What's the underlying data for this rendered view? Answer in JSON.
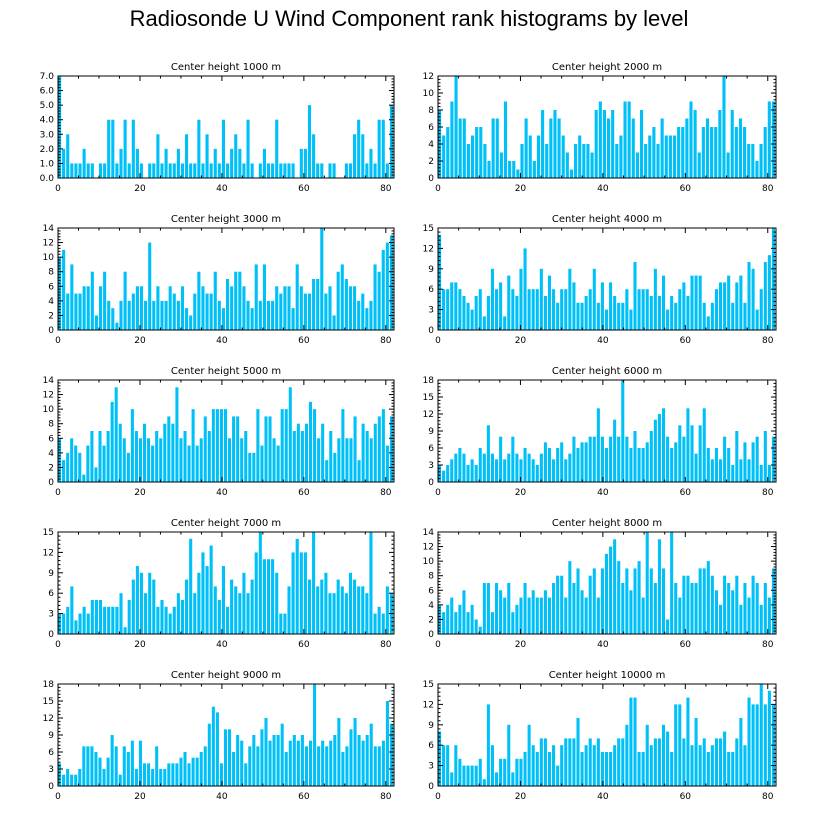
{
  "title": "Radiosonde U Wind Component rank histograms by level",
  "bar_color": "#00c0f8",
  "chart_data": [
    {
      "type": "bar",
      "title": "Center height 1000 m",
      "xlabel": "",
      "ylabel": "",
      "xlim": [
        0,
        82
      ],
      "ylim": [
        0,
        7
      ],
      "xticks": [
        0,
        20,
        40,
        60,
        80
      ],
      "yticks": [
        0,
        1,
        2,
        3,
        4,
        5,
        6,
        7
      ],
      "ytick_labels": [
        "0.0",
        "1.0",
        "2.0",
        "3.0",
        "4.0",
        "5.0",
        "6.0",
        "7.0"
      ],
      "values": [
        7,
        2,
        3,
        1,
        1,
        1,
        2,
        1,
        1,
        0,
        1,
        1,
        4,
        4,
        1,
        2,
        4,
        1,
        4,
        2,
        1,
        0,
        1,
        1,
        3,
        1,
        2,
        1,
        1,
        2,
        1,
        3,
        1,
        1,
        4,
        1,
        3,
        1,
        2,
        1,
        4,
        1,
        2,
        3,
        2,
        1,
        4,
        1,
        0,
        1,
        2,
        1,
        1,
        4,
        1,
        1,
        1,
        1,
        0,
        2,
        2,
        5,
        3,
        1,
        1,
        0,
        1,
        1,
        0,
        0,
        1,
        1,
        3,
        4,
        3,
        1,
        2,
        1,
        4,
        4,
        1,
        5
      ]
    },
    {
      "type": "bar",
      "title": "Center height 2000 m",
      "xlabel": "",
      "ylabel": "",
      "xlim": [
        0,
        82
      ],
      "ylim": [
        0,
        12
      ],
      "xticks": [
        0,
        20,
        40,
        60,
        80
      ],
      "yticks": [
        0,
        2,
        4,
        6,
        8,
        10,
        12
      ],
      "ytick_labels": [
        "0",
        "2",
        "4",
        "6",
        "8",
        "10",
        "12"
      ],
      "values": [
        8,
        5,
        6,
        9,
        12,
        7,
        7,
        4,
        5,
        6,
        6,
        4,
        2,
        7,
        7,
        3,
        9,
        2,
        2,
        1,
        4,
        7,
        5,
        2,
        5,
        8,
        4,
        7,
        8,
        7,
        5,
        3,
        1,
        4,
        5,
        4,
        4,
        3,
        8,
        9,
        8,
        7,
        8,
        4,
        5,
        9,
        9,
        7,
        3,
        8,
        4,
        5,
        6,
        4,
        7,
        5,
        5,
        5,
        6,
        6,
        7,
        9,
        8,
        3,
        6,
        7,
        6,
        6,
        8,
        12,
        3,
        8,
        6,
        7,
        6,
        4,
        4,
        2,
        4,
        6,
        9,
        9
      ]
    },
    {
      "type": "bar",
      "title": "Center height 3000 m",
      "xlabel": "",
      "ylabel": "",
      "xlim": [
        0,
        82
      ],
      "ylim": [
        0,
        14
      ],
      "xticks": [
        0,
        20,
        40,
        60,
        80
      ],
      "yticks": [
        0,
        2,
        4,
        6,
        8,
        10,
        12,
        14
      ],
      "ytick_labels": [
        "0",
        "2",
        "4",
        "6",
        "8",
        "10",
        "12",
        "14"
      ],
      "values": [
        10,
        11,
        5,
        9,
        5,
        5,
        6,
        6,
        8,
        2,
        6,
        8,
        4,
        3,
        1,
        4,
        8,
        4,
        5,
        6,
        6,
        4,
        12,
        4,
        6,
        4,
        4,
        6,
        5,
        4,
        6,
        3,
        2,
        5,
        8,
        6,
        5,
        5,
        8,
        4,
        3,
        7,
        6,
        8,
        8,
        6,
        4,
        3,
        9,
        4,
        9,
        4,
        4,
        6,
        5,
        6,
        6,
        3,
        9,
        6,
        5,
        5,
        7,
        7,
        14,
        5,
        6,
        2,
        8,
        9,
        7,
        6,
        6,
        4,
        5,
        3,
        4,
        9,
        8,
        11,
        12,
        13
      ]
    },
    {
      "type": "bar",
      "title": "Center height 4000 m",
      "xlabel": "",
      "ylabel": "",
      "xlim": [
        0,
        82
      ],
      "ylim": [
        0,
        15
      ],
      "xticks": [
        0,
        20,
        40,
        60,
        80
      ],
      "yticks": [
        0,
        3,
        6,
        9,
        12,
        15
      ],
      "ytick_labels": [
        "0",
        "3",
        "6",
        "9",
        "12",
        "15"
      ],
      "values": [
        14,
        6,
        6,
        7,
        7,
        6,
        5,
        4,
        3,
        5,
        6,
        2,
        5,
        9,
        6,
        7,
        2,
        8,
        6,
        5,
        9,
        12,
        6,
        6,
        6,
        9,
        5,
        8,
        6,
        4,
        6,
        6,
        9,
        7,
        4,
        4,
        5,
        6,
        9,
        4,
        7,
        3,
        7,
        5,
        4,
        4,
        6,
        3,
        10,
        6,
        6,
        6,
        5,
        9,
        5,
        8,
        3,
        5,
        4,
        6,
        7,
        5,
        8,
        8,
        8,
        4,
        2,
        4,
        6,
        7,
        7,
        8,
        4,
        7,
        8,
        4,
        10,
        9,
        3,
        6,
        10,
        11,
        15
      ]
    },
    {
      "type": "bar",
      "title": "Center height 5000 m",
      "xlabel": "",
      "ylabel": "",
      "xlim": [
        0,
        82
      ],
      "ylim": [
        0,
        14
      ],
      "xticks": [
        0,
        20,
        40,
        60,
        80
      ],
      "yticks": [
        0,
        2,
        4,
        6,
        8,
        10,
        12,
        14
      ],
      "ytick_labels": [
        "0",
        "2",
        "4",
        "6",
        "8",
        "10",
        "12",
        "14"
      ],
      "values": [
        6,
        3,
        4,
        6,
        5,
        4,
        1,
        5,
        7,
        2,
        7,
        5,
        7,
        11,
        13,
        8,
        6,
        4,
        10,
        7,
        6,
        8,
        6,
        5,
        7,
        6,
        8,
        9,
        8,
        13,
        6,
        7,
        5,
        10,
        5,
        6,
        9,
        7,
        10,
        10,
        10,
        10,
        6,
        9,
        9,
        6,
        7,
        4,
        4,
        10,
        5,
        9,
        9,
        6,
        5,
        10,
        10,
        13,
        7,
        8,
        7,
        8,
        11,
        10,
        6,
        8,
        3,
        7,
        4,
        6,
        10,
        6,
        6,
        9,
        3,
        8,
        7,
        6,
        8,
        9,
        10,
        5,
        9
      ]
    },
    {
      "type": "bar",
      "title": "Center height 6000 m",
      "xlabel": "",
      "ylabel": "",
      "xlim": [
        0,
        82
      ],
      "ylim": [
        0,
        18
      ],
      "xticks": [
        0,
        20,
        40,
        60,
        80
      ],
      "yticks": [
        0,
        3,
        6,
        9,
        12,
        15,
        18
      ],
      "ytick_labels": [
        "0",
        "3",
        "6",
        "9",
        "12",
        "15",
        "18"
      ],
      "values": [
        3,
        2,
        3,
        4,
        5,
        6,
        5,
        3,
        4,
        3,
        6,
        5,
        10,
        5,
        4,
        8,
        4,
        5,
        8,
        5,
        4,
        6,
        5,
        4,
        3,
        5,
        7,
        6,
        4,
        6,
        7,
        4,
        5,
        8,
        6,
        7,
        7,
        8,
        8,
        13,
        8,
        6,
        8,
        11,
        8,
        18,
        8,
        6,
        9,
        6,
        6,
        7,
        9,
        11,
        12,
        13,
        8,
        6,
        7,
        10,
        8,
        13,
        10,
        5,
        10,
        13,
        6,
        4,
        6,
        4,
        8,
        6,
        3,
        9,
        4,
        7,
        4,
        7,
        8,
        3,
        9,
        3,
        8
      ]
    },
    {
      "type": "bar",
      "title": "Center height 7000 m",
      "xlabel": "",
      "ylabel": "",
      "xlim": [
        0,
        82
      ],
      "ylim": [
        0,
        15
      ],
      "xticks": [
        0,
        20,
        40,
        60,
        80
      ],
      "yticks": [
        0,
        3,
        6,
        9,
        12,
        15
      ],
      "ytick_labels": [
        "0",
        "3",
        "6",
        "9",
        "12",
        "15"
      ],
      "values": [
        3,
        3,
        4,
        7,
        2,
        3,
        4,
        3,
        5,
        5,
        5,
        4,
        4,
        4,
        4,
        6,
        1,
        5,
        8,
        10,
        9,
        6,
        9,
        8,
        4,
        5,
        4,
        3,
        4,
        6,
        5,
        8,
        14,
        6,
        9,
        12,
        10,
        13,
        7,
        5,
        10,
        4,
        8,
        7,
        6,
        9,
        6,
        8,
        12,
        15,
        11,
        11,
        11,
        9,
        3,
        3,
        7,
        12,
        14,
        12,
        12,
        8,
        15,
        7,
        8,
        9,
        6,
        6,
        8,
        7,
        6,
        9,
        8,
        7,
        7,
        6,
        15,
        3,
        4,
        3,
        7,
        6
      ]
    },
    {
      "type": "bar",
      "title": "Center height 8000 m",
      "xlabel": "",
      "ylabel": "",
      "xlim": [
        0,
        82
      ],
      "ylim": [
        0,
        14
      ],
      "xticks": [
        0,
        20,
        40,
        60,
        80
      ],
      "yticks": [
        0,
        2,
        4,
        6,
        8,
        10,
        12,
        14
      ],
      "ytick_labels": [
        "0",
        "2",
        "4",
        "6",
        "8",
        "10",
        "12",
        "14"
      ],
      "values": [
        4,
        3,
        4,
        5,
        3,
        4,
        6,
        3,
        4,
        2,
        1,
        7,
        7,
        3,
        7,
        6,
        5,
        7,
        3,
        4,
        5,
        7,
        5,
        6,
        5,
        5,
        6,
        5,
        7,
        8,
        8,
        5,
        10,
        7,
        9,
        6,
        5,
        8,
        9,
        5,
        9,
        11,
        12,
        13,
        10,
        7,
        9,
        6,
        9,
        10,
        5,
        14,
        9,
        7,
        13,
        9,
        2,
        14,
        7,
        5,
        8,
        8,
        7,
        7,
        9,
        9,
        10,
        8,
        6,
        4,
        8,
        7,
        6,
        8,
        4,
        7,
        5,
        8,
        7,
        4,
        7,
        5,
        9
      ]
    },
    {
      "type": "bar",
      "title": "Center height 9000 m",
      "xlabel": "",
      "ylabel": "",
      "xlim": [
        0,
        82
      ],
      "ylim": [
        0,
        18
      ],
      "xticks": [
        0,
        20,
        40,
        60,
        80
      ],
      "yticks": [
        0,
        3,
        6,
        9,
        12,
        15,
        18
      ],
      "ytick_labels": [
        "0",
        "3",
        "6",
        "9",
        "12",
        "15",
        "18"
      ],
      "values": [
        4,
        2,
        3,
        2,
        2,
        3,
        7,
        7,
        7,
        6,
        5,
        3,
        5,
        9,
        7,
        2,
        7,
        6,
        8,
        3,
        8,
        4,
        4,
        3,
        7,
        3,
        3,
        4,
        4,
        4,
        5,
        6,
        4,
        5,
        5,
        6,
        7,
        11,
        14,
        13,
        4,
        10,
        10,
        6,
        9,
        8,
        4,
        7,
        9,
        7,
        10,
        12,
        8,
        9,
        9,
        11,
        6,
        8,
        9,
        8,
        9,
        7,
        8,
        18,
        7,
        8,
        7,
        8,
        9,
        12,
        6,
        7,
        10,
        12,
        9,
        8,
        9,
        11,
        7,
        7,
        8,
        15,
        11
      ]
    },
    {
      "type": "bar",
      "title": "Center height 10000 m",
      "xlabel": "",
      "ylabel": "",
      "xlim": [
        0,
        82
      ],
      "ylim": [
        0,
        15
      ],
      "xticks": [
        0,
        20,
        40,
        60,
        80
      ],
      "yticks": [
        0,
        3,
        6,
        9,
        12,
        15
      ],
      "ytick_labels": [
        "0",
        "3",
        "6",
        "9",
        "12",
        "15"
      ],
      "values": [
        8,
        6,
        6,
        2,
        6,
        4,
        3,
        3,
        3,
        3,
        4,
        1,
        12,
        6,
        2,
        4,
        4,
        9,
        2,
        4,
        4,
        5,
        9,
        6,
        5,
        7,
        7,
        5,
        6,
        3,
        6,
        7,
        7,
        7,
        10,
        5,
        6,
        7,
        6,
        7,
        5,
        5,
        5,
        6,
        7,
        7,
        9,
        13,
        13,
        5,
        5,
        9,
        6,
        7,
        7,
        9,
        8,
        5,
        12,
        12,
        7,
        13,
        6,
        10,
        6,
        7,
        5,
        6,
        7,
        7,
        8,
        5,
        5,
        7,
        10,
        6,
        13,
        12,
        12,
        15,
        12,
        14,
        12
      ]
    }
  ]
}
